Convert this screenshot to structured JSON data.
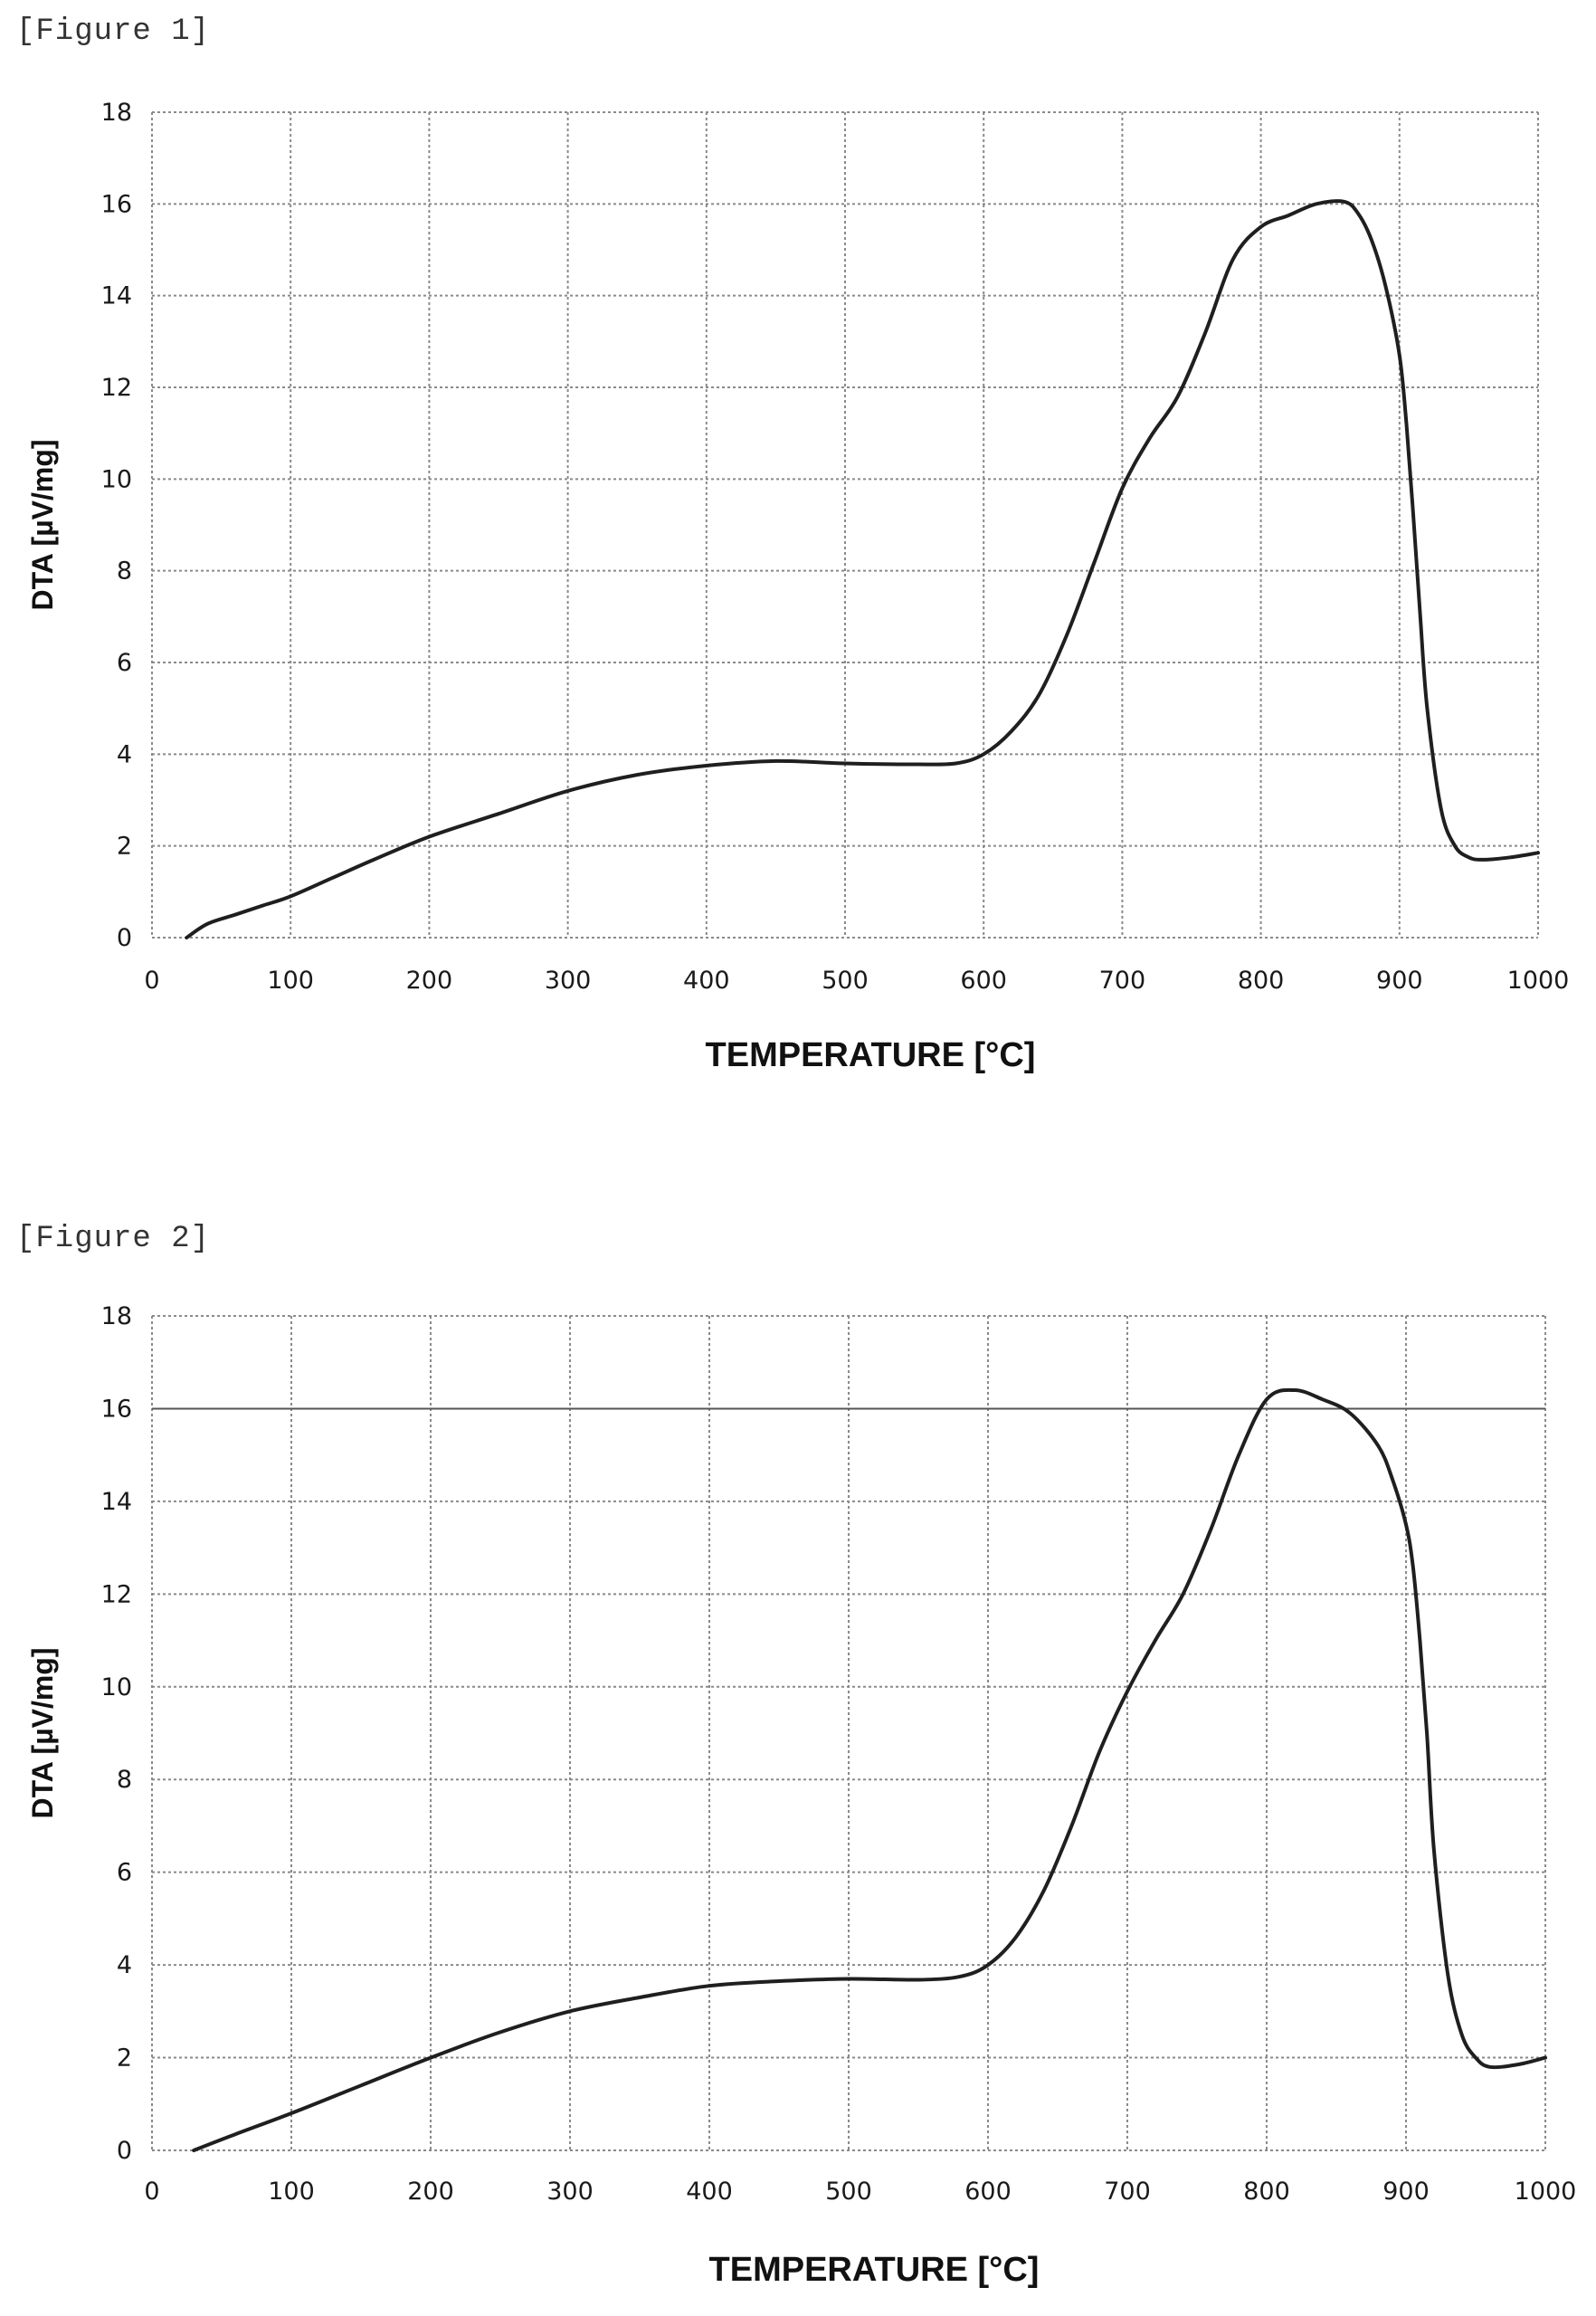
{
  "figures": [
    {
      "label": "[Figure 1]"
    },
    {
      "label": "[Figure 2]"
    }
  ],
  "chart_data": [
    {
      "type": "line",
      "title": "",
      "xlabel": "TEMPERATURE [°C]",
      "ylabel": "DTA [µV/mg]",
      "xlim": [
        0,
        1000
      ],
      "ylim": [
        0,
        18
      ],
      "x_ticks": [
        "0",
        "100",
        "200",
        "300",
        "400",
        "500",
        "600",
        "700",
        "800",
        "900",
        "1000"
      ],
      "y_ticks": [
        "0",
        "2",
        "4",
        "6",
        "8",
        "10",
        "12",
        "14",
        "16",
        "18"
      ],
      "grid": true,
      "series": [
        {
          "x": [
            25,
            40,
            60,
            80,
            100,
            130,
            160,
            200,
            250,
            300,
            350,
            400,
            450,
            500,
            550,
            580,
            600,
            620,
            640,
            660,
            680,
            700,
            720,
            740,
            760,
            780,
            800,
            820,
            840,
            860,
            870,
            880,
            890,
            900,
            905,
            910,
            915,
            920,
            930,
            940,
            950,
            960,
            980,
            1000
          ],
          "y": [
            0.0,
            0.3,
            0.5,
            0.7,
            0.9,
            1.3,
            1.7,
            2.2,
            2.7,
            3.2,
            3.55,
            3.75,
            3.85,
            3.8,
            3.78,
            3.8,
            4.0,
            4.5,
            5.3,
            6.6,
            8.2,
            9.8,
            10.9,
            11.8,
            13.2,
            14.8,
            15.5,
            15.75,
            16.0,
            16.05,
            15.8,
            15.2,
            14.2,
            12.7,
            11.2,
            9.2,
            7.0,
            5.0,
            2.8,
            2.0,
            1.75,
            1.7,
            1.75,
            1.85
          ]
        }
      ]
    },
    {
      "type": "line",
      "title": "",
      "xlabel": "TEMPERATURE [°C]",
      "ylabel": "DTA [µV/mg]",
      "xlim": [
        0,
        1000
      ],
      "ylim": [
        0,
        18
      ],
      "x_ticks": [
        "0",
        "100",
        "200",
        "300",
        "400",
        "500",
        "600",
        "700",
        "800",
        "900",
        "1000"
      ],
      "y_ticks": [
        "0",
        "2",
        "4",
        "6",
        "8",
        "10",
        "12",
        "14",
        "16",
        "18"
      ],
      "grid": true,
      "series": [
        {
          "x": [
            30,
            60,
            100,
            150,
            200,
            250,
            300,
            350,
            400,
            450,
            500,
            550,
            580,
            600,
            620,
            640,
            660,
            680,
            700,
            720,
            740,
            760,
            780,
            800,
            820,
            840,
            860,
            880,
            890,
            900,
            905,
            910,
            915,
            920,
            930,
            940,
            950,
            960,
            980,
            1000
          ],
          "y": [
            0.0,
            0.35,
            0.8,
            1.4,
            2.0,
            2.55,
            3.0,
            3.3,
            3.55,
            3.65,
            3.7,
            3.68,
            3.75,
            4.0,
            4.6,
            5.6,
            7.0,
            8.6,
            9.9,
            11.0,
            12.0,
            13.4,
            15.0,
            16.2,
            16.4,
            16.2,
            15.9,
            15.2,
            14.5,
            13.5,
            12.6,
            11.0,
            9.0,
            6.5,
            3.8,
            2.5,
            2.0,
            1.8,
            1.85,
            2.0
          ]
        }
      ]
    }
  ]
}
